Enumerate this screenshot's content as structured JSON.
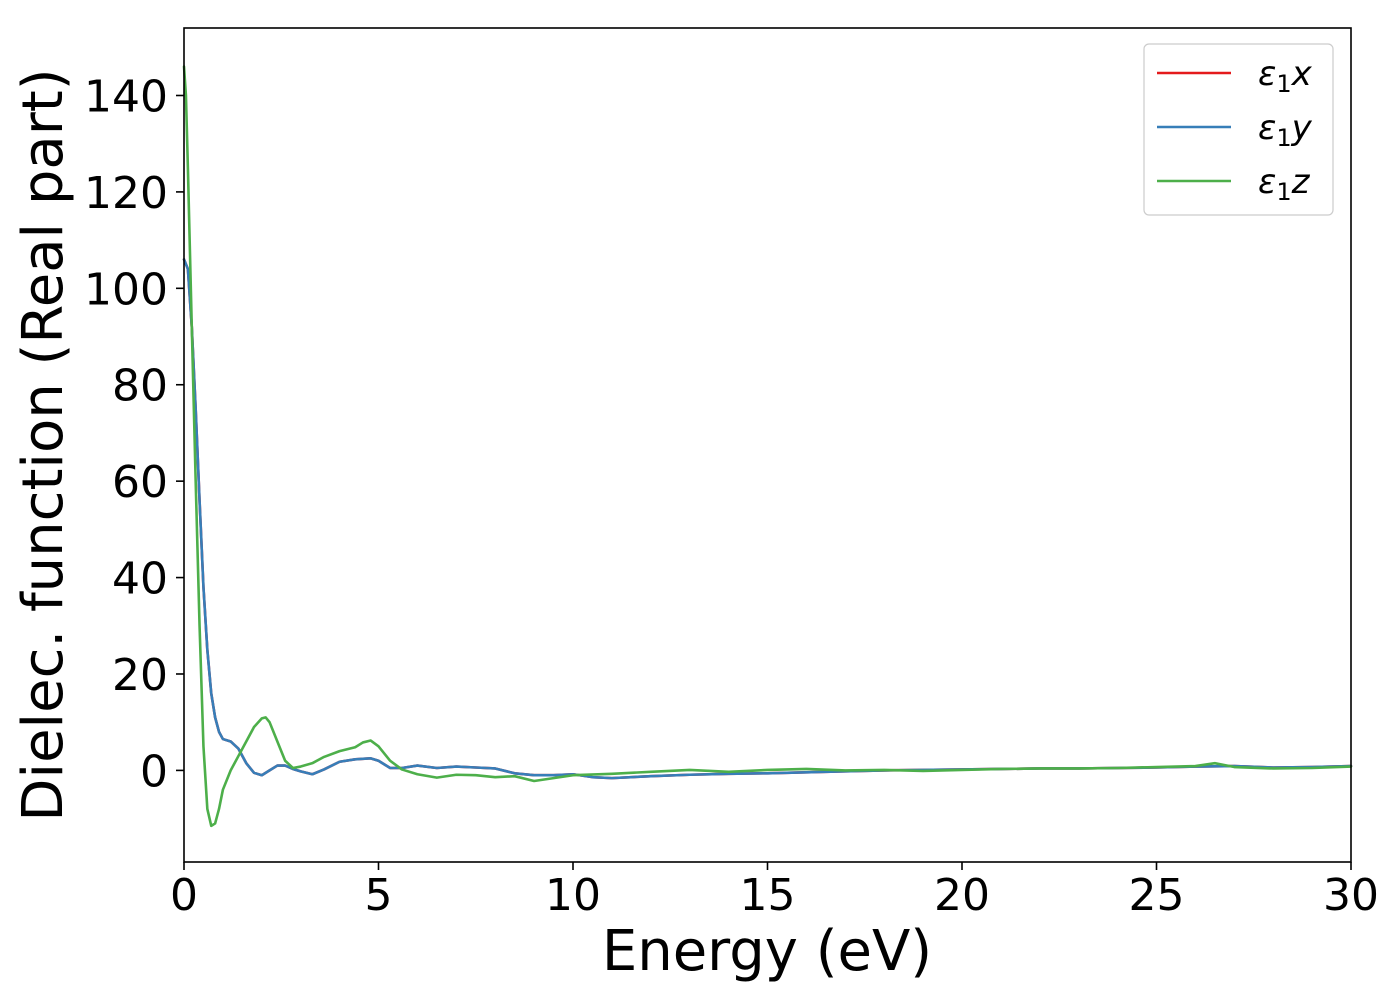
{
  "chart_data": {
    "type": "line",
    "title": "",
    "xlabel": "Energy (eV)",
    "ylabel": "Dielec. function (Real part)",
    "xlim": [
      0,
      30
    ],
    "ylim": [
      -19,
      154
    ],
    "xticks": [
      0,
      5,
      10,
      15,
      20,
      25,
      30
    ],
    "yticks": [
      0,
      20,
      40,
      60,
      80,
      100,
      120,
      140
    ],
    "grid": false,
    "legend_position": "top-right",
    "series": [
      {
        "name": "x",
        "color": "#e41a1c",
        "x": [
          0,
          0.1,
          0.2,
          0.3,
          0.4,
          0.5,
          0.6,
          0.7,
          0.8,
          0.9,
          1.0,
          1.2,
          1.4,
          1.6,
          1.8,
          2.0,
          2.2,
          2.4,
          2.6,
          2.8,
          3.0,
          3.3,
          3.6,
          4.0,
          4.4,
          4.8,
          5.0,
          5.3,
          5.6,
          6.0,
          6.5,
          7.0,
          7.5,
          8.0,
          8.5,
          9.0,
          9.5,
          10.0,
          10.5,
          11.0,
          12.0,
          13.0,
          14.0,
          15.0,
          16.0,
          17.0,
          18.0,
          19.0,
          20.0,
          21.0,
          22.0,
          23.0,
          24.0,
          25.0,
          26.0,
          27.0,
          28.0,
          29.0,
          30.0
        ],
        "y": [
          106,
          104,
          92,
          75,
          56,
          38,
          25,
          16,
          11,
          8,
          6.5,
          6,
          4.5,
          1.5,
          -0.5,
          -1,
          0,
          1,
          1,
          0.3,
          -0.2,
          -0.8,
          0.2,
          1.8,
          2.3,
          2.5,
          2.0,
          0.5,
          0.5,
          1.0,
          0.5,
          0.8,
          0.6,
          0.4,
          -0.6,
          -1.0,
          -1.0,
          -0.8,
          -1.4,
          -1.6,
          -1.2,
          -0.9,
          -0.7,
          -0.6,
          -0.4,
          -0.2,
          0.0,
          0.1,
          0.2,
          0.3,
          0.4,
          0.4,
          0.5,
          0.6,
          0.8,
          0.9,
          0.6,
          0.7,
          0.9
        ]
      },
      {
        "name": "y",
        "color": "#377eb8",
        "x": [
          0,
          0.1,
          0.2,
          0.3,
          0.4,
          0.5,
          0.6,
          0.7,
          0.8,
          0.9,
          1.0,
          1.2,
          1.4,
          1.6,
          1.8,
          2.0,
          2.2,
          2.4,
          2.6,
          2.8,
          3.0,
          3.3,
          3.6,
          4.0,
          4.4,
          4.8,
          5.0,
          5.3,
          5.6,
          6.0,
          6.5,
          7.0,
          7.5,
          8.0,
          8.5,
          9.0,
          9.5,
          10.0,
          10.5,
          11.0,
          12.0,
          13.0,
          14.0,
          15.0,
          16.0,
          17.0,
          18.0,
          19.0,
          20.0,
          21.0,
          22.0,
          23.0,
          24.0,
          25.0,
          26.0,
          27.0,
          28.0,
          29.0,
          30.0
        ],
        "y": [
          106,
          104,
          92,
          75,
          56,
          38,
          25,
          16,
          11,
          8,
          6.5,
          6,
          4.5,
          1.5,
          -0.5,
          -1,
          0,
          1,
          1,
          0.3,
          -0.2,
          -0.8,
          0.2,
          1.8,
          2.3,
          2.5,
          2.0,
          0.5,
          0.5,
          1.0,
          0.5,
          0.8,
          0.6,
          0.4,
          -0.6,
          -1.0,
          -1.0,
          -0.8,
          -1.4,
          -1.6,
          -1.2,
          -0.9,
          -0.7,
          -0.6,
          -0.4,
          -0.2,
          0.0,
          0.1,
          0.2,
          0.3,
          0.4,
          0.4,
          0.5,
          0.6,
          0.8,
          0.9,
          0.6,
          0.7,
          0.9
        ]
      },
      {
        "name": "z",
        "color": "#4daf4a",
        "x": [
          0,
          0.05,
          0.1,
          0.2,
          0.3,
          0.4,
          0.5,
          0.6,
          0.7,
          0.8,
          0.9,
          1.0,
          1.2,
          1.4,
          1.6,
          1.8,
          2.0,
          2.1,
          2.2,
          2.4,
          2.6,
          2.8,
          3.0,
          3.3,
          3.6,
          4.0,
          4.4,
          4.6,
          4.8,
          5.0,
          5.3,
          5.6,
          6.0,
          6.5,
          7.0,
          7.5,
          8.0,
          8.5,
          9.0,
          9.5,
          10.0,
          11.0,
          12.0,
          13.0,
          14.0,
          15.0,
          16.0,
          17.0,
          18.0,
          19.0,
          20.0,
          21.0,
          22.0,
          23.0,
          24.0,
          25.0,
          26.0,
          26.5,
          27.0,
          28.0,
          29.0,
          30.0
        ],
        "y": [
          146,
          140,
          125,
          92,
          60,
          30,
          5,
          -8,
          -11.5,
          -11,
          -8,
          -4,
          0,
          3,
          6,
          9,
          10.8,
          11,
          10,
          6,
          2,
          0.5,
          0.8,
          1.5,
          2.8,
          4.0,
          4.8,
          5.8,
          6.2,
          5.0,
          2.0,
          0.2,
          -0.8,
          -1.5,
          -0.9,
          -1.0,
          -1.4,
          -1.2,
          -2.2,
          -1.6,
          -1.0,
          -0.7,
          -0.3,
          0.1,
          -0.3,
          0.1,
          0.3,
          0.0,
          0.1,
          -0.1,
          0.1,
          0.3,
          0.4,
          0.4,
          0.5,
          0.7,
          0.9,
          1.5,
          0.7,
          0.4,
          0.5,
          0.8
        ]
      }
    ]
  },
  "legend": {
    "epsilon": "ε",
    "subscript": "1",
    "items": [
      "x",
      "y",
      "z"
    ]
  }
}
